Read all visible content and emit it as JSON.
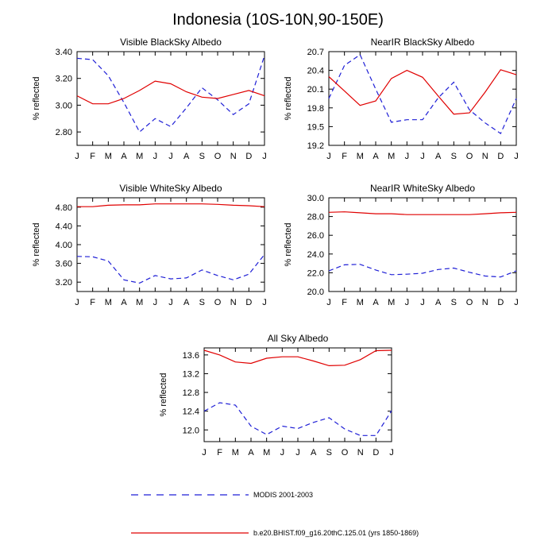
{
  "title": "Indonesia (10S-10N,90-150E)",
  "colors": {
    "modis": "#1f1fd6",
    "model": "#e00000"
  },
  "legend": [
    {
      "series": "modis",
      "label": "MODIS 2001-2003",
      "style": "dashed"
    },
    {
      "series": "model",
      "label": "b.e20.BHIST.f09_g16.20thC.125.01 (yrs 1850-1869)",
      "style": "solid"
    }
  ],
  "chart_data": [
    {
      "type": "line",
      "title": "Visible BlackSky Albedo",
      "ylabel": "% reflected",
      "categories": [
        "J",
        "F",
        "M",
        "A",
        "M",
        "J",
        "J",
        "A",
        "S",
        "O",
        "N",
        "D",
        "J"
      ],
      "ylim": [
        2.7,
        3.4
      ],
      "yticks": [
        "3.40",
        "3.20",
        "3.00",
        "2.80"
      ],
      "ytick_values": [
        3.4,
        3.2,
        3.0,
        2.8
      ],
      "series": [
        {
          "key": "modis",
          "name": "MODIS 2001-2003",
          "values": [
            3.35,
            3.34,
            3.22,
            3.02,
            2.8,
            2.9,
            2.84,
            2.98,
            3.13,
            3.04,
            2.93,
            3.01,
            3.37
          ]
        },
        {
          "key": "model",
          "name": "b.e20.BHIST.f09_g16.20thC.125.01 (yrs 1850-1869)",
          "values": [
            3.07,
            3.01,
            3.01,
            3.05,
            3.11,
            3.18,
            3.16,
            3.1,
            3.06,
            3.05,
            3.08,
            3.11,
            3.07
          ]
        }
      ]
    },
    {
      "type": "line",
      "title": "NearIR BlackSky Albedo",
      "ylabel": "% reflected",
      "categories": [
        "J",
        "F",
        "M",
        "A",
        "M",
        "J",
        "J",
        "A",
        "S",
        "O",
        "N",
        "D",
        "J"
      ],
      "ylim": [
        19.2,
        20.7
      ],
      "yticks": [
        "20.7",
        "20.4",
        "20.1",
        "19.8",
        "19.5",
        "19.2"
      ],
      "ytick_values": [
        20.7,
        20.4,
        20.1,
        19.8,
        19.5,
        19.2
      ],
      "series": [
        {
          "key": "modis",
          "name": "MODIS 2001-2003",
          "values": [
            19.95,
            20.48,
            20.65,
            20.1,
            19.57,
            19.61,
            19.61,
            19.96,
            20.21,
            19.77,
            19.56,
            19.39,
            19.95
          ]
        },
        {
          "key": "model",
          "name": "b.e20.BHIST.f09_g16.20thC.125.01 (yrs 1850-1869)",
          "values": [
            20.3,
            20.07,
            19.84,
            19.91,
            20.27,
            20.4,
            20.29,
            19.99,
            19.7,
            19.72,
            20.05,
            20.41,
            20.33
          ]
        }
      ]
    },
    {
      "type": "line",
      "title": "Visible WhiteSky Albedo",
      "ylabel": "% reflected",
      "categories": [
        "J",
        "F",
        "M",
        "A",
        "M",
        "J",
        "J",
        "A",
        "S",
        "O",
        "N",
        "D",
        "J"
      ],
      "ylim": [
        3.0,
        5.0
      ],
      "yticks": [
        "4.80",
        "4.40",
        "4.00",
        "3.60",
        "3.20"
      ],
      "ytick_values": [
        4.8,
        4.4,
        4.0,
        3.6,
        3.2
      ],
      "series": [
        {
          "key": "modis",
          "name": "MODIS 2001-2003",
          "values": [
            3.75,
            3.74,
            3.65,
            3.25,
            3.18,
            3.34,
            3.27,
            3.29,
            3.46,
            3.34,
            3.25,
            3.37,
            3.79
          ]
        },
        {
          "key": "model",
          "name": "b.e20.BHIST.f09_g16.20thC.125.01 (yrs 1850-1869)",
          "values": [
            4.81,
            4.81,
            4.84,
            4.85,
            4.85,
            4.87,
            4.87,
            4.87,
            4.87,
            4.86,
            4.84,
            4.83,
            4.81
          ]
        }
      ]
    },
    {
      "type": "line",
      "title": "NearIR WhiteSky Albedo",
      "ylabel": "% reflected",
      "categories": [
        "J",
        "F",
        "M",
        "A",
        "M",
        "J",
        "J",
        "A",
        "S",
        "O",
        "N",
        "D",
        "J"
      ],
      "ylim": [
        20.0,
        30.0
      ],
      "yticks": [
        "30.0",
        "28.0",
        "26.0",
        "24.0",
        "22.0",
        "20.0"
      ],
      "ytick_values": [
        30.0,
        28.0,
        26.0,
        24.0,
        22.0,
        20.0
      ],
      "series": [
        {
          "key": "modis",
          "name": "MODIS 2001-2003",
          "values": [
            22.2,
            22.85,
            22.9,
            22.3,
            21.8,
            21.85,
            21.95,
            22.35,
            22.5,
            22.05,
            21.65,
            21.55,
            22.2
          ]
        },
        {
          "key": "model",
          "name": "b.e20.BHIST.f09_g16.20thC.125.01 (yrs 1850-1869)",
          "values": [
            28.45,
            28.5,
            28.4,
            28.3,
            28.3,
            28.2,
            28.2,
            28.2,
            28.2,
            28.2,
            28.3,
            28.4,
            28.45
          ]
        }
      ]
    },
    {
      "type": "line",
      "title": "All Sky Albedo",
      "ylabel": "% reflected",
      "categories": [
        "J",
        "F",
        "M",
        "A",
        "M",
        "J",
        "J",
        "A",
        "S",
        "O",
        "N",
        "D",
        "J"
      ],
      "ylim": [
        11.75,
        13.75
      ],
      "yticks": [
        "13.6",
        "13.2",
        "12.8",
        "12.4",
        "12.0"
      ],
      "ytick_values": [
        13.6,
        13.2,
        12.8,
        12.4,
        12.0
      ],
      "series": [
        {
          "key": "modis",
          "name": "MODIS 2001-2003",
          "values": [
            12.4,
            12.58,
            12.53,
            12.08,
            11.9,
            12.08,
            12.03,
            12.16,
            12.26,
            12.02,
            11.88,
            11.88,
            12.41
          ]
        },
        {
          "key": "model",
          "name": "b.e20.BHIST.f09_g16.20thC.125.01 (yrs 1850-1869)",
          "values": [
            13.7,
            13.6,
            13.45,
            13.42,
            13.53,
            13.56,
            13.56,
            13.47,
            13.37,
            13.38,
            13.5,
            13.69,
            13.7
          ]
        }
      ]
    }
  ]
}
